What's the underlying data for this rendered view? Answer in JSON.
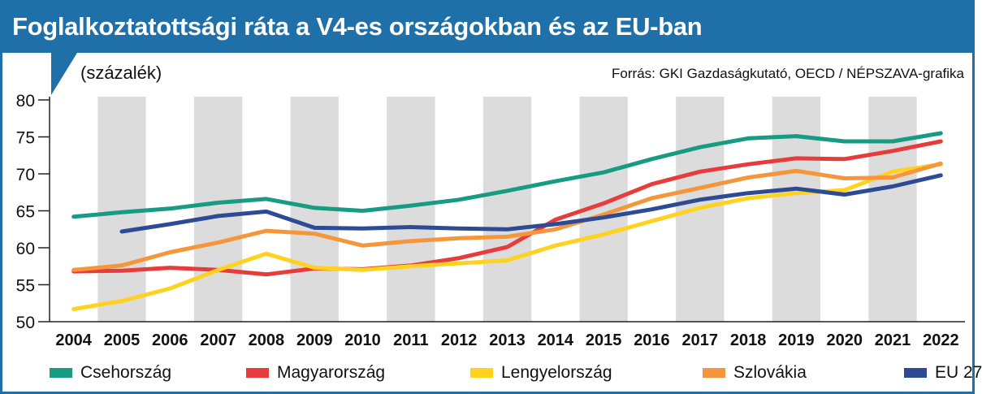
{
  "header": {
    "title": "Foglalkoztatottsági ráta a V4-es országokban és az EU-ban",
    "unit": "(százalék)",
    "source": "Forrás: GKI Gazdaságkutató, OECD / NÉPSZAVA-grafika"
  },
  "colors": {
    "title_bar": "#1f6fa8",
    "band": "#dcdcdc"
  },
  "chart_data": {
    "type": "line",
    "title": "Foglalkoztatottsági ráta a V4-es országokban és az EU-ban",
    "ylabel": "(százalék)",
    "xlabel": "",
    "x": [
      "2004",
      "2005",
      "2006",
      "2007",
      "2008",
      "2009",
      "2010",
      "2011",
      "2012",
      "2013",
      "2014",
      "2015",
      "2016",
      "2017",
      "2018",
      "2019",
      "2020",
      "2021",
      "2022"
    ],
    "ylim": [
      50,
      80
    ],
    "yticks": [
      "80",
      "75",
      "70",
      "65",
      "60",
      "55",
      "50"
    ],
    "grid": "alternating vertical bands",
    "legend_position": "bottom",
    "series": [
      {
        "name": "Csehország",
        "color": "#179b83",
        "values": [
          64.2,
          64.8,
          65.3,
          66.1,
          66.6,
          65.4,
          65.0,
          65.7,
          66.5,
          67.7,
          69.0,
          70.2,
          72.0,
          73.6,
          74.8,
          75.1,
          74.4,
          74.4,
          75.5
        ]
      },
      {
        "name": "Magyarország",
        "color": "#e63c3c",
        "values": [
          56.8,
          56.9,
          57.3,
          57.0,
          56.4,
          57.2,
          57.1,
          57.6,
          58.6,
          60.1,
          63.8,
          66.0,
          68.6,
          70.3,
          71.3,
          72.1,
          72.0,
          73.1,
          74.4
        ]
      },
      {
        "name": "Lengyelország",
        "color": "#ffd21f",
        "values": [
          51.7,
          52.8,
          54.5,
          57.0,
          59.2,
          57.3,
          57.0,
          57.5,
          57.9,
          58.3,
          60.3,
          61.8,
          63.6,
          65.4,
          66.7,
          67.4,
          67.8,
          70.3,
          71.3
        ]
      },
      {
        "name": "Szlovákia",
        "color": "#f5963c",
        "values": [
          57.0,
          57.6,
          59.4,
          60.7,
          62.3,
          61.9,
          60.3,
          60.9,
          61.3,
          61.5,
          62.5,
          64.5,
          66.7,
          68.1,
          69.5,
          70.4,
          69.4,
          69.5,
          71.4
        ]
      },
      {
        "name": "EU 27",
        "color": "#2d4a94",
        "values": [
          null,
          62.2,
          63.2,
          64.3,
          64.9,
          62.7,
          62.6,
          62.8,
          62.6,
          62.5,
          63.2,
          64.1,
          65.2,
          66.5,
          67.4,
          68.0,
          67.2,
          68.3,
          69.8
        ]
      }
    ]
  }
}
